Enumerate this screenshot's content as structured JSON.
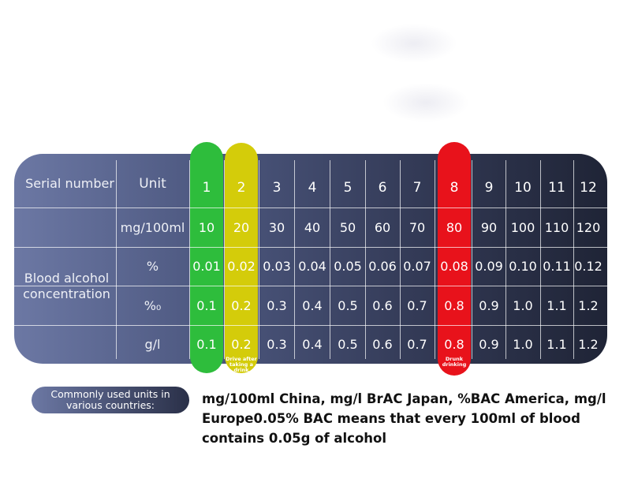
{
  "table": {
    "header_label": "Serial number",
    "unit_label": "Unit",
    "row_group_label": "Blood alcohol concentration",
    "serials": [
      "1",
      "2",
      "3",
      "4",
      "5",
      "6",
      "7",
      "8",
      "9",
      "10",
      "11",
      "12"
    ],
    "rows": [
      {
        "unit": "mg/100ml",
        "values": [
          "10",
          "20",
          "30",
          "40",
          "50",
          "60",
          "70",
          "80",
          "90",
          "100",
          "110",
          "120"
        ]
      },
      {
        "unit": "%",
        "values": [
          "0.01",
          "0.02",
          "0.03",
          "0.04",
          "0.05",
          "0.06",
          "0.07",
          "0.08",
          "0.09",
          "0.10",
          "0.11",
          "0.12"
        ]
      },
      {
        "unit": "%₀",
        "values": [
          "0.1",
          "0.2",
          "0.3",
          "0.4",
          "0.5",
          "0.6",
          "0.7",
          "0.8",
          "0.9",
          "1.0",
          "1.1",
          "1.2"
        ]
      },
      {
        "unit": "g/l",
        "values": [
          "0.1",
          "0.2",
          "0.3",
          "0.4",
          "0.5",
          "0.6",
          "0.7",
          "0.8",
          "0.9",
          "1.0",
          "1.1",
          "1.2"
        ]
      }
    ],
    "highlights": [
      {
        "column": 0,
        "color": "#2ebd3c"
      },
      {
        "column": 1,
        "color": "#d4cc0a",
        "tag": "Drive after taking a drink"
      },
      {
        "column": 7,
        "color": "#e8121b",
        "tag": "Drunk drinking"
      }
    ]
  },
  "note": {
    "pill_label": "Commonly used units in various countries:",
    "text": "mg/100ml China, mg/l BrAC Japan, %BAC America, mg/l Europe0.05% BAC means that every 100ml of blood contains 0.05g of alcohol"
  }
}
